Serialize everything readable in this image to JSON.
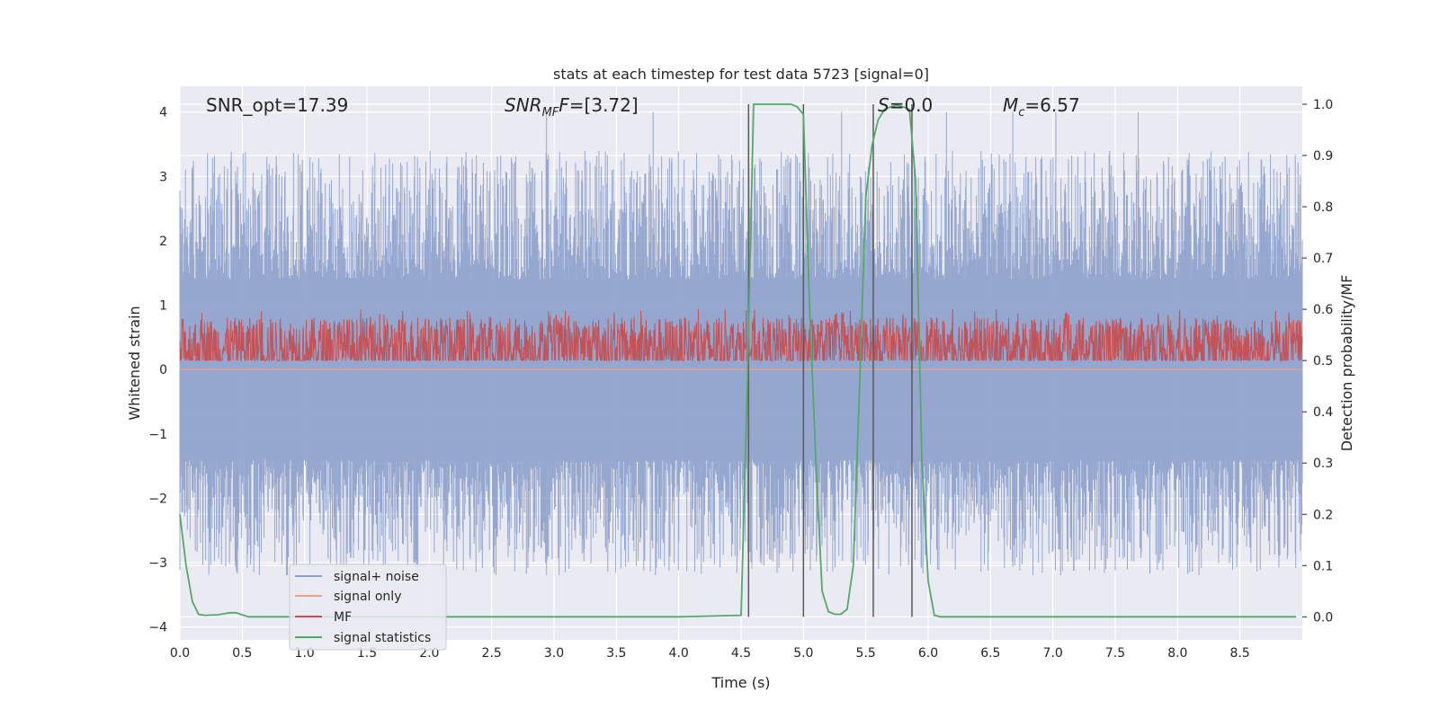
{
  "chart_data": {
    "type": "line",
    "title": "stats at each timestep for test data 5723 [signal=0]",
    "xlabel": "Time (s)",
    "ylabel": "Whitened strain",
    "y2label": "Detection probability/MF",
    "xlim": [
      0.0,
      9.0
    ],
    "ylim": [
      -4.2,
      4.4
    ],
    "y2lim": [
      -0.045,
      1.035
    ],
    "x_ticks": [
      "0.0",
      "0.5",
      "1.0",
      "1.5",
      "2.0",
      "2.5",
      "3.0",
      "3.5",
      "4.0",
      "4.5",
      "5.0",
      "5.5",
      "6.0",
      "6.5",
      "7.0",
      "7.5",
      "8.0",
      "8.5"
    ],
    "y_ticks": [
      "4",
      "3",
      "2",
      "1",
      "0",
      "−1",
      "−2",
      "−3",
      "−4"
    ],
    "y_tick_values": [
      4,
      3,
      2,
      1,
      0,
      -1,
      -2,
      -3,
      -4
    ],
    "y2_ticks": [
      "1.0",
      "0.9",
      "0.8",
      "0.7",
      "0.6",
      "0.5",
      "0.4",
      "0.3",
      "0.2",
      "0.1",
      "0.0"
    ],
    "y2_tick_values": [
      1.0,
      0.9,
      0.8,
      0.7,
      0.6,
      0.5,
      0.4,
      0.3,
      0.2,
      0.1,
      0.0
    ],
    "grid": true,
    "legend_position": "lower-left",
    "annotations": {
      "snr_opt": "SNR_opt=17.39",
      "snr_mf_base": "SNR",
      "snr_mf_sub": "MF",
      "snr_mf_value": "=[3.72]",
      "s_base": "S",
      "s_value": "=0.0",
      "mc_base": "M",
      "mc_sub": "c",
      "mc_value": "=6.57"
    },
    "series": [
      {
        "name": "signal+ noise",
        "color": "#8da0cb",
        "axis": "left",
        "style": "noise",
        "amplitude_range": [
          -3.5,
          4.0
        ]
      },
      {
        "name": "signal only",
        "color": "#e9a385",
        "axis": "left",
        "values_constant": 0.0
      },
      {
        "name": "MF",
        "color": "#c44e52",
        "axis": "right",
        "style": "noise",
        "range": [
          0.47,
          0.6
        ]
      },
      {
        "name": "signal statistics",
        "color": "#55a868",
        "axis": "right",
        "x": [
          0.0,
          0.05,
          0.1,
          0.15,
          0.2,
          0.3,
          0.4,
          0.45,
          0.5,
          0.55,
          1.0,
          2.0,
          3.0,
          4.0,
          4.5,
          4.55,
          4.6,
          4.65,
          4.7,
          4.8,
          4.9,
          4.95,
          5.0,
          5.05,
          5.1,
          5.15,
          5.2,
          5.25,
          5.3,
          5.35,
          5.4,
          5.45,
          5.5,
          5.55,
          5.6,
          5.65,
          5.7,
          5.75,
          5.8,
          5.85,
          5.9,
          5.95,
          6.0,
          6.05,
          6.1,
          6.5,
          7.0,
          8.0,
          8.95
        ],
        "y": [
          0.2,
          0.1,
          0.03,
          0.005,
          0.003,
          0.004,
          0.008,
          0.008,
          0.004,
          0.0,
          0.0,
          0.0,
          0.0,
          0.0,
          0.003,
          0.45,
          1.0,
          1.0,
          1.0,
          1.0,
          1.0,
          0.995,
          0.98,
          0.6,
          0.3,
          0.05,
          0.01,
          0.005,
          0.005,
          0.015,
          0.1,
          0.45,
          0.82,
          0.92,
          0.97,
          0.99,
          0.995,
          0.998,
          0.995,
          0.99,
          0.85,
          0.3,
          0.07,
          0.003,
          0.0,
          0.0,
          0.0,
          0.0,
          0.0
        ]
      }
    ],
    "vertical_markers": [
      4.56,
      5.0,
      5.56,
      5.87
    ],
    "vertical_marker_color": "#595959"
  }
}
